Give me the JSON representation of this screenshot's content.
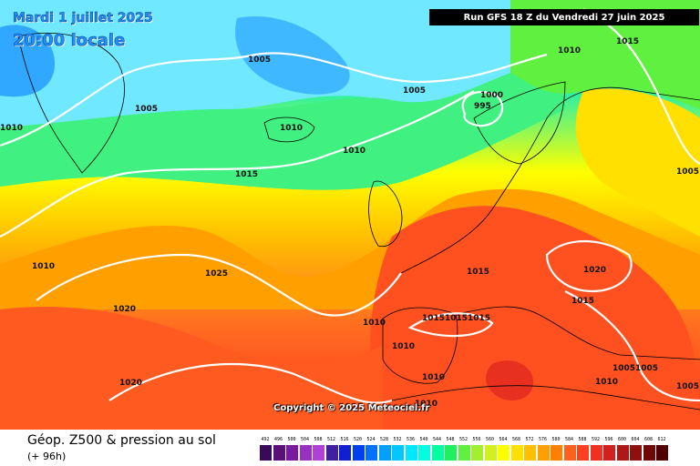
{
  "header": {
    "date": "Mardi 1 juillet 2025",
    "time": "20:00 locale",
    "run": "Run GFS 18 Z du Vendredi 27 juin 2025"
  },
  "copyright": "Copyright © 2025 Meteociel.fr",
  "footer": {
    "title": "Géop. Z500 & pression au sol",
    "subtitle": "(+ 96h)"
  },
  "colors": {
    "scale": [
      "#3a0a5a",
      "#5a1078",
      "#7a1a9e",
      "#9830c0",
      "#b040d8",
      "#4020a0",
      "#1020d0",
      "#0040f0",
      "#0070ff",
      "#00a0ff",
      "#00c8ff",
      "#00e8ff",
      "#00ffe0",
      "#00ffa0",
      "#20f060",
      "#60f040",
      "#a0f030",
      "#d0f020",
      "#ffff00",
      "#ffe000",
      "#ffc000",
      "#ffa000",
      "#ff8000",
      "#ff6020",
      "#ff4020",
      "#f03020",
      "#d02020",
      "#b01818",
      "#901010",
      "#700808",
      "#500000",
      "#300000",
      "#000000"
    ]
  },
  "scale_labels": [
    "492",
    "496",
    "500",
    "504",
    "508",
    "512",
    "516",
    "520",
    "524",
    "528",
    "532",
    "536",
    "540",
    "544",
    "548",
    "552",
    "556",
    "560",
    "564",
    "568",
    "572",
    "576",
    "580",
    "584",
    "588",
    "592",
    "596",
    "600",
    "604",
    "608",
    "612"
  ],
  "isobar_labels": [
    "1005",
    "1005",
    "1005",
    "1000",
    "995",
    "1010",
    "1010",
    "1010",
    "1015",
    "1025",
    "1010",
    "1020",
    "1020",
    "1015",
    "1020",
    "1015",
    "1015",
    "1015",
    "1015",
    "1010",
    "1010",
    "1010",
    "1005",
    "1005",
    "1010",
    "1005",
    "1010",
    "1015",
    "1005",
    "1010"
  ]
}
